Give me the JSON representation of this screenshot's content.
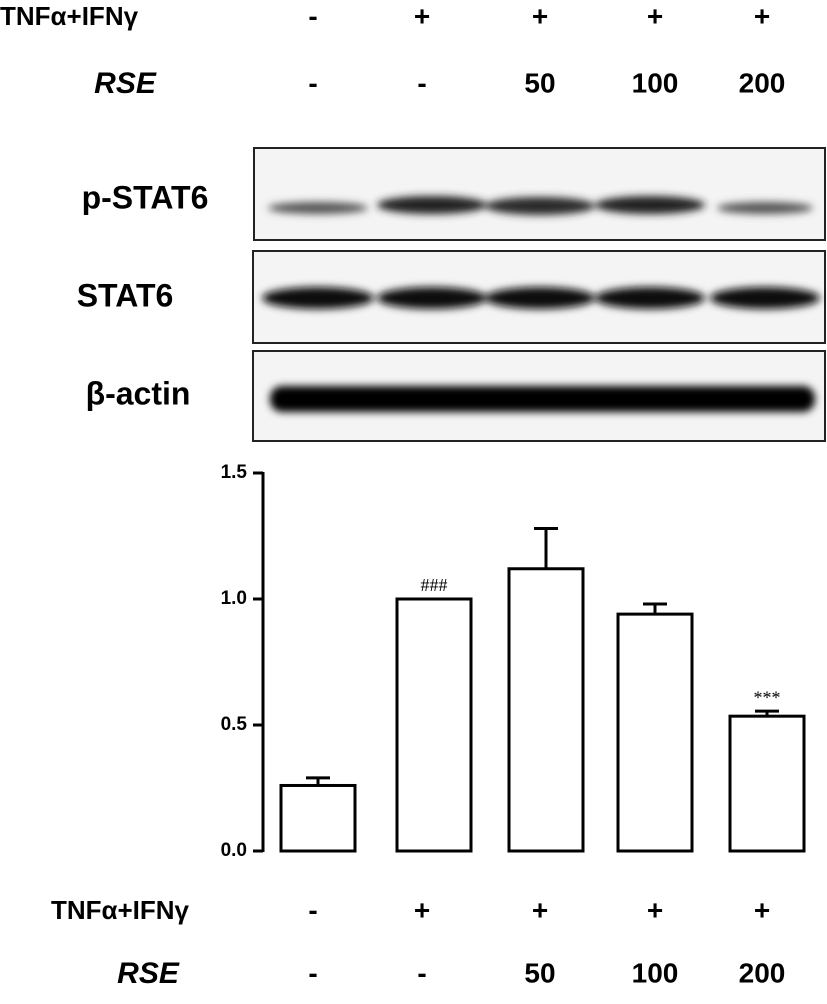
{
  "top_rows": [
    {
      "label": "TNFα+IFNγ",
      "values": [
        "-",
        "+",
        "+",
        "+",
        "+"
      ]
    },
    {
      "label": "RSE",
      "values": [
        "-",
        "-",
        "50",
        "100",
        "200"
      ]
    }
  ],
  "blots": [
    "p-STAT6",
    "STAT6",
    "β-actin"
  ],
  "chart_data": {
    "type": "bar",
    "values": [
      0.26,
      1.0,
      1.12,
      0.94,
      0.535
    ],
    "errors": [
      0.03,
      0.0,
      0.16,
      0.04,
      0.02
    ],
    "value_annotations": [
      null,
      "###",
      null,
      null,
      "***"
    ],
    "color": "#ffffff",
    "ylim": [
      0,
      1.5
    ],
    "yticks": [
      {
        "value": 0,
        "label": "0.0"
      },
      {
        "value": 0.5,
        "label": "0.5"
      },
      {
        "value": 1,
        "label": "1.0"
      },
      {
        "value": 1.5,
        "label": "1.5"
      }
    ],
    "treatment_rows": [
      {
        "label": "TNFα+IFNγ",
        "values": [
          "-",
          "+",
          "+",
          "+",
          "+"
        ]
      },
      {
        "label": "RSE",
        "values": [
          "-",
          "-",
          "50",
          "100",
          "200"
        ]
      }
    ]
  }
}
